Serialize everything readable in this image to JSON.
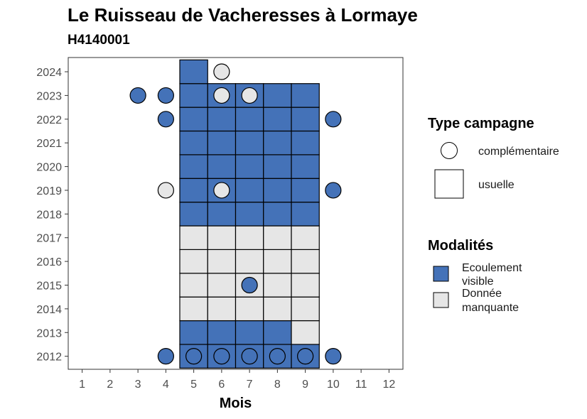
{
  "colors": {
    "ecoulement": "#4472b8",
    "manquante": "#e6e6e6",
    "outline": "#000000"
  },
  "chart_data": {
    "type": "heatmap",
    "title": "Le Ruisseau de Vacheresses à Lormaye",
    "subtitle": "H4140001",
    "xlabel": "Mois",
    "ylabel": "",
    "x_ticks": [
      "1",
      "2",
      "3",
      "4",
      "5",
      "6",
      "7",
      "8",
      "9",
      "10",
      "11",
      "12"
    ],
    "y_ticks": [
      "2012",
      "2013",
      "2014",
      "2015",
      "2016",
      "2017",
      "2018",
      "2019",
      "2020",
      "2021",
      "2022",
      "2023",
      "2024"
    ],
    "xlim": [
      0.5,
      12.5
    ],
    "ylim": [
      2011.45,
      2024.6
    ],
    "grid": false,
    "legend_position": "right",
    "legend_type": {
      "title": "Type campagne",
      "items": [
        {
          "key": "complementaire",
          "label": "complémentaire",
          "shape": "circle"
        },
        {
          "key": "usuelle",
          "label": "usuelle",
          "shape": "square"
        }
      ]
    },
    "legend_modalites": {
      "title": "Modalités",
      "items": [
        {
          "key": "ecoulement",
          "label_lines": [
            "Ecoulement",
            "visible"
          ]
        },
        {
          "key": "manquante",
          "label_lines": [
            "Donnée",
            "manquante"
          ]
        }
      ]
    },
    "tiles": [
      {
        "month": 5,
        "year": 2012,
        "value": "ecoulement"
      },
      {
        "month": 6,
        "year": 2012,
        "value": "ecoulement"
      },
      {
        "month": 7,
        "year": 2012,
        "value": "ecoulement"
      },
      {
        "month": 8,
        "year": 2012,
        "value": "ecoulement"
      },
      {
        "month": 9,
        "year": 2012,
        "value": "ecoulement"
      },
      {
        "month": 5,
        "year": 2013,
        "value": "ecoulement"
      },
      {
        "month": 6,
        "year": 2013,
        "value": "ecoulement"
      },
      {
        "month": 7,
        "year": 2013,
        "value": "ecoulement"
      },
      {
        "month": 8,
        "year": 2013,
        "value": "ecoulement"
      },
      {
        "month": 9,
        "year": 2013,
        "value": "manquante"
      },
      {
        "month": 5,
        "year": 2014,
        "value": "manquante"
      },
      {
        "month": 6,
        "year": 2014,
        "value": "manquante"
      },
      {
        "month": 7,
        "year": 2014,
        "value": "manquante"
      },
      {
        "month": 8,
        "year": 2014,
        "value": "manquante"
      },
      {
        "month": 9,
        "year": 2014,
        "value": "manquante"
      },
      {
        "month": 5,
        "year": 2015,
        "value": "manquante"
      },
      {
        "month": 6,
        "year": 2015,
        "value": "manquante"
      },
      {
        "month": 7,
        "year": 2015,
        "value": "manquante"
      },
      {
        "month": 8,
        "year": 2015,
        "value": "manquante"
      },
      {
        "month": 9,
        "year": 2015,
        "value": "manquante"
      },
      {
        "month": 5,
        "year": 2016,
        "value": "manquante"
      },
      {
        "month": 6,
        "year": 2016,
        "value": "manquante"
      },
      {
        "month": 7,
        "year": 2016,
        "value": "manquante"
      },
      {
        "month": 8,
        "year": 2016,
        "value": "manquante"
      },
      {
        "month": 9,
        "year": 2016,
        "value": "manquante"
      },
      {
        "month": 5,
        "year": 2017,
        "value": "manquante"
      },
      {
        "month": 6,
        "year": 2017,
        "value": "manquante"
      },
      {
        "month": 7,
        "year": 2017,
        "value": "manquante"
      },
      {
        "month": 8,
        "year": 2017,
        "value": "manquante"
      },
      {
        "month": 9,
        "year": 2017,
        "value": "manquante"
      },
      {
        "month": 5,
        "year": 2018,
        "value": "ecoulement"
      },
      {
        "month": 6,
        "year": 2018,
        "value": "ecoulement"
      },
      {
        "month": 7,
        "year": 2018,
        "value": "ecoulement"
      },
      {
        "month": 8,
        "year": 2018,
        "value": "ecoulement"
      },
      {
        "month": 9,
        "year": 2018,
        "value": "ecoulement"
      },
      {
        "month": 5,
        "year": 2019,
        "value": "ecoulement"
      },
      {
        "month": 6,
        "year": 2019,
        "value": "ecoulement"
      },
      {
        "month": 7,
        "year": 2019,
        "value": "ecoulement"
      },
      {
        "month": 8,
        "year": 2019,
        "value": "ecoulement"
      },
      {
        "month": 9,
        "year": 2019,
        "value": "ecoulement"
      },
      {
        "month": 5,
        "year": 2020,
        "value": "ecoulement"
      },
      {
        "month": 6,
        "year": 2020,
        "value": "ecoulement"
      },
      {
        "month": 7,
        "year": 2020,
        "value": "ecoulement"
      },
      {
        "month": 8,
        "year": 2020,
        "value": "ecoulement"
      },
      {
        "month": 9,
        "year": 2020,
        "value": "ecoulement"
      },
      {
        "month": 5,
        "year": 2021,
        "value": "ecoulement"
      },
      {
        "month": 6,
        "year": 2021,
        "value": "ecoulement"
      },
      {
        "month": 7,
        "year": 2021,
        "value": "ecoulement"
      },
      {
        "month": 8,
        "year": 2021,
        "value": "ecoulement"
      },
      {
        "month": 9,
        "year": 2021,
        "value": "ecoulement"
      },
      {
        "month": 5,
        "year": 2022,
        "value": "ecoulement"
      },
      {
        "month": 6,
        "year": 2022,
        "value": "ecoulement"
      },
      {
        "month": 7,
        "year": 2022,
        "value": "ecoulement"
      },
      {
        "month": 8,
        "year": 2022,
        "value": "ecoulement"
      },
      {
        "month": 9,
        "year": 2022,
        "value": "ecoulement"
      },
      {
        "month": 5,
        "year": 2023,
        "value": "ecoulement"
      },
      {
        "month": 6,
        "year": 2023,
        "value": "ecoulement"
      },
      {
        "month": 7,
        "year": 2023,
        "value": "ecoulement"
      },
      {
        "month": 8,
        "year": 2023,
        "value": "ecoulement"
      },
      {
        "month": 9,
        "year": 2023,
        "value": "ecoulement"
      },
      {
        "month": 5,
        "year": 2024,
        "value": "ecoulement"
      }
    ],
    "points": [
      {
        "month": 4,
        "year": 2012,
        "value": "ecoulement"
      },
      {
        "month": 5,
        "year": 2012,
        "value": "ecoulement"
      },
      {
        "month": 6,
        "year": 2012,
        "value": "ecoulement"
      },
      {
        "month": 7,
        "year": 2012,
        "value": "ecoulement"
      },
      {
        "month": 8,
        "year": 2012,
        "value": "ecoulement"
      },
      {
        "month": 9,
        "year": 2012,
        "value": "ecoulement"
      },
      {
        "month": 10,
        "year": 2012,
        "value": "ecoulement"
      },
      {
        "month": 7,
        "year": 2015,
        "value": "ecoulement"
      },
      {
        "month": 4,
        "year": 2019,
        "value": "manquante"
      },
      {
        "month": 6,
        "year": 2019,
        "value": "manquante"
      },
      {
        "month": 10,
        "year": 2019,
        "value": "ecoulement"
      },
      {
        "month": 4,
        "year": 2022,
        "value": "ecoulement"
      },
      {
        "month": 10,
        "year": 2022,
        "value": "ecoulement"
      },
      {
        "month": 3,
        "year": 2023,
        "value": "ecoulement"
      },
      {
        "month": 4,
        "year": 2023,
        "value": "ecoulement"
      },
      {
        "month": 6,
        "year": 2023,
        "value": "manquante"
      },
      {
        "month": 7,
        "year": 2023,
        "value": "manquante"
      },
      {
        "month": 6,
        "year": 2024,
        "value": "manquante"
      }
    ]
  }
}
